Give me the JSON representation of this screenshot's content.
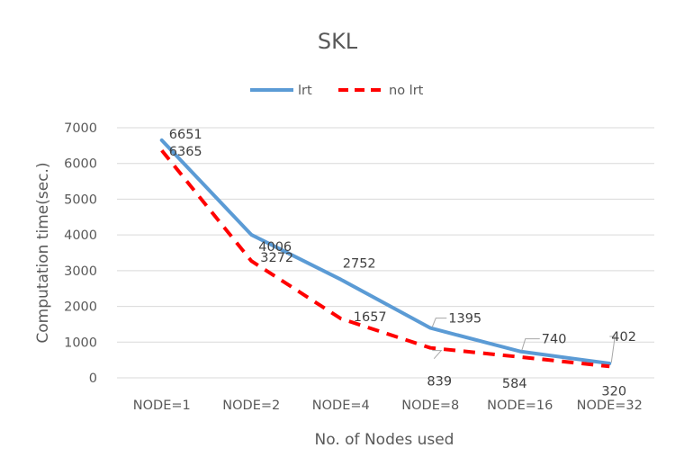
{
  "chart_data": {
    "type": "line",
    "title": "SKL",
    "xlabel": "No. of Nodes used",
    "ylabel": "Computation time(sec.)",
    "categories": [
      "NODE=1",
      "NODE=2",
      "NODE=4",
      "NODE=8",
      "NODE=16",
      "NODE=32"
    ],
    "ylim": [
      0,
      7000
    ],
    "yticks": [
      0,
      1000,
      2000,
      3000,
      4000,
      5000,
      6000,
      7000
    ],
    "grid": true,
    "legend_position": "top",
    "series": [
      {
        "name": "lrt",
        "values": [
          6651,
          4006,
          2752,
          1395,
          740,
          402
        ],
        "color": "#5b9bd5",
        "style": "solid"
      },
      {
        "name": "no lrt",
        "values": [
          6365,
          3272,
          1657,
          839,
          584,
          320
        ],
        "color": "#ff0000",
        "style": "dashed"
      }
    ]
  }
}
